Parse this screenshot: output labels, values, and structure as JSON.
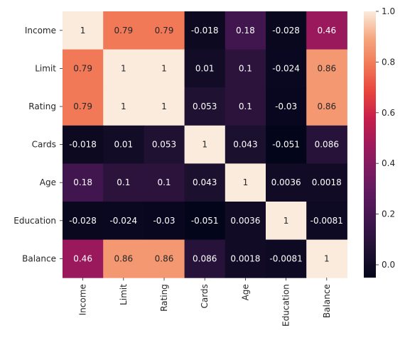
{
  "chart_data": {
    "type": "heatmap",
    "title": "",
    "xlabel": "",
    "ylabel": "",
    "rows": [
      "Income",
      "Limit",
      "Rating",
      "Cards",
      "Age",
      "Education",
      "Balance"
    ],
    "columns": [
      "Income",
      "Limit",
      "Rating",
      "Cards",
      "Age",
      "Education",
      "Balance"
    ],
    "values": [
      [
        1,
        0.79,
        0.79,
        -0.018,
        0.18,
        -0.028,
        0.46
      ],
      [
        0.79,
        1,
        1,
        0.01,
        0.1,
        -0.024,
        0.86
      ],
      [
        0.79,
        1,
        1,
        0.053,
        0.1,
        -0.03,
        0.86
      ],
      [
        -0.018,
        0.01,
        0.053,
        1,
        0.043,
        -0.051,
        0.086
      ],
      [
        0.18,
        0.1,
        0.1,
        0.043,
        1,
        0.0036,
        0.0018
      ],
      [
        -0.028,
        -0.024,
        -0.03,
        -0.051,
        0.0036,
        1,
        -0.0081
      ],
      [
        0.46,
        0.86,
        0.86,
        0.086,
        0.0018,
        -0.0081,
        1
      ]
    ],
    "annotations": [
      [
        "1",
        "0.79",
        "0.79",
        "-0.018",
        "0.18",
        "-0.028",
        "0.46"
      ],
      [
        "0.79",
        "1",
        "1",
        "0.01",
        "0.1",
        "-0.024",
        "0.86"
      ],
      [
        "0.79",
        "1",
        "1",
        "0.053",
        "0.1",
        "-0.03",
        "0.86"
      ],
      [
        "-0.018",
        "0.01",
        "0.053",
        "1",
        "0.043",
        "-0.051",
        "0.086"
      ],
      [
        "0.18",
        "0.1",
        "0.1",
        "0.043",
        "1",
        "0.0036",
        "0.0018"
      ],
      [
        "-0.028",
        "-0.024",
        "-0.03",
        "-0.051",
        "0.0036",
        "1",
        "-0.0081"
      ],
      [
        "0.46",
        "0.86",
        "0.86",
        "0.086",
        "0.0018",
        "-0.0081",
        "1"
      ]
    ],
    "colormap": "rocket",
    "vmin": -0.051,
    "vmax": 1,
    "colorbar": {
      "ticks": [
        0.0,
        0.2,
        0.4,
        0.6,
        0.8,
        1.0
      ],
      "tick_labels": [
        "0.0",
        "0.2",
        "0.4",
        "0.6",
        "0.8",
        "1.0"
      ]
    },
    "grid": false
  }
}
